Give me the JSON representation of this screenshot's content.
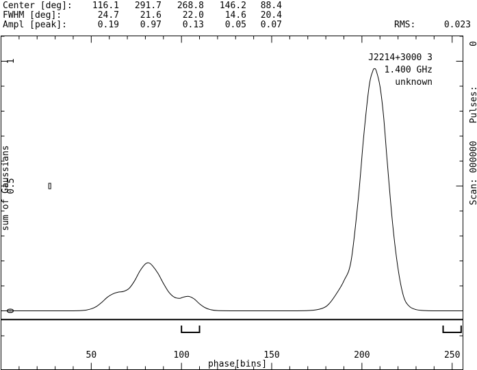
{
  "header": {
    "rows": [
      {
        "label": "Center [deg]:",
        "values": [
          "116.1",
          "291.7",
          "268.8",
          "146.2",
          "88.4"
        ]
      },
      {
        "label": "FWHM  [deg]:",
        "values": [
          "24.7",
          "21.6",
          "22.0",
          "14.6",
          "20.4"
        ]
      },
      {
        "label": "Ampl  [peak]:",
        "values": [
          "0.19",
          "0.97",
          "0.13",
          "0.05",
          "0.07"
        ]
      }
    ],
    "rms_label": "RMS:",
    "rms_value": "0.023"
  },
  "annotation": {
    "source": "J2214+3000 3",
    "frequency": "1.400 GHz",
    "status": "unknown"
  },
  "right_axis": {
    "pulses_label": "Pulses:",
    "pulses_value": "0",
    "scan_label": "Scan: 000000"
  },
  "chart_data": {
    "type": "line",
    "xlabel": "phase[bins]",
    "ylabel": "sum of Gaussians",
    "xlim": [
      0,
      256
    ],
    "ylim": [
      -0.1,
      1.1
    ],
    "xticks": [
      50,
      100,
      150,
      200,
      250
    ],
    "yticks": [
      0,
      0.5,
      1
    ],
    "xtick_labels": [
      "50",
      "100",
      "150",
      "200",
      "250"
    ],
    "ytick_labels": [
      "0",
      "0.5",
      "1"
    ],
    "series": [
      {
        "x": [
          0,
          10,
          20,
          30,
          40,
          46,
          50,
          53,
          56,
          59,
          62,
          65,
          68,
          71,
          74,
          77,
          80,
          82,
          84,
          87,
          90,
          93,
          96,
          99,
          101,
          104,
          107,
          110,
          113,
          116,
          120,
          130,
          150,
          170,
          178,
          182,
          186,
          190,
          194,
          198,
          201,
          204,
          206,
          207,
          208,
          210,
          212,
          214,
          217,
          220,
          223,
          226,
          230,
          235,
          240,
          245,
          256
        ],
        "y": [
          0,
          0,
          0,
          0,
          0,
          0.002,
          0.008,
          0.018,
          0.035,
          0.055,
          0.068,
          0.075,
          0.078,
          0.09,
          0.12,
          0.16,
          0.188,
          0.192,
          0.18,
          0.15,
          0.11,
          0.075,
          0.055,
          0.05,
          0.055,
          0.058,
          0.048,
          0.028,
          0.013,
          0.005,
          0.001,
          0,
          0,
          0.001,
          0.01,
          0.03,
          0.07,
          0.12,
          0.2,
          0.45,
          0.7,
          0.9,
          0.96,
          0.97,
          0.96,
          0.9,
          0.78,
          0.6,
          0.35,
          0.17,
          0.06,
          0.02,
          0.005,
          0.001,
          0,
          0,
          0
        ]
      }
    ],
    "marker_box": {
      "x": 27,
      "y": 0.5
    },
    "baseline_y": -0.035,
    "window_brackets": [
      {
        "start": 100,
        "end": 110
      },
      {
        "start": 245,
        "end": 255
      }
    ]
  }
}
